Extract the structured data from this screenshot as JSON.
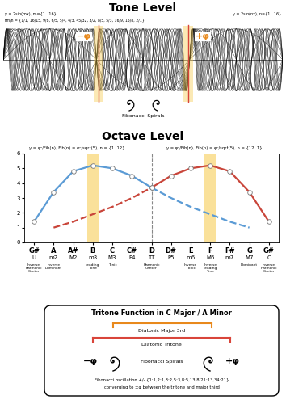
{
  "tone_level": {
    "title": "Tone Level",
    "formula_left": "y = 2sin(mx), m={1...16}",
    "ratios": "fm/n = {1/1, 16/15, 9/8, 6/5, 5/4, 4/3, 45/32, 3/2, 8/5, 5/3, 16/9, 15/8, 2/1}",
    "formula_right": "y = 2sin(nx), n={1...16}",
    "amplitude": 2,
    "m_range": [
      1,
      16
    ],
    "minus_phi": "−φ",
    "plus_phi": "+φ",
    "spiral_label": "Fibonacci Spirals"
  },
  "chart_data": {
    "type": "line",
    "title": "Octave Level",
    "formula_left": "y = φⁿ/Fib(n), Fib(n) = φⁿ/sqrt(5), n = {1..12}",
    "formula_right": "y = φⁿ/Fib(n), Fib(n) = φⁿ/sqrt(5), n = {12..1}",
    "categories": [
      "G#",
      "A",
      "A#",
      "B",
      "C",
      "C#",
      "D",
      "D#",
      "E",
      "F",
      "F#",
      "G",
      "G#"
    ],
    "intervals": [
      "U",
      "m2",
      "M2",
      "m3",
      "M3",
      "P4",
      "TT",
      "P5",
      "m6",
      "M6",
      "m7",
      "M7",
      "O"
    ],
    "functions": [
      "Inverse Harmonic Center",
      "Inverse Dominant",
      null,
      "Leading Tone",
      "Tonic",
      null,
      "Harmonic Center",
      null,
      "Inverse Tonic",
      "Inverse Leading Tone",
      null,
      "Dominant",
      "Inverse Harmonic Center"
    ],
    "highlight_categories": [
      "B",
      "F"
    ],
    "divider_category": "D",
    "ylim": [
      0,
      6
    ],
    "yticks": [
      0,
      1,
      2,
      3,
      4,
      5,
      6
    ],
    "grid": false,
    "series": [
      {
        "color": "#5b9bd5",
        "line_style": "solid",
        "marker": "o",
        "values": [
          1.4,
          3.4,
          4.8,
          5.2,
          5.0,
          4.5,
          3.7,
          null,
          null,
          null,
          null,
          null,
          null
        ]
      },
      {
        "color": "#5b9bd5",
        "line_style": "dashed",
        "marker": "none",
        "values": [
          null,
          null,
          null,
          null,
          null,
          null,
          3.7,
          3.0,
          2.4,
          1.9,
          1.4,
          1.0,
          null
        ]
      },
      {
        "color": "#c9453a",
        "line_style": "dashed",
        "marker": "none",
        "values": [
          null,
          1.0,
          1.4,
          1.9,
          2.4,
          3.0,
          3.7,
          null,
          null,
          null,
          null,
          null,
          null
        ]
      },
      {
        "color": "#c9453a",
        "line_style": "solid",
        "marker": "o",
        "values": [
          null,
          null,
          null,
          null,
          null,
          null,
          3.7,
          4.5,
          5.0,
          5.2,
          4.8,
          3.4,
          1.4
        ]
      }
    ]
  },
  "tritone_box": {
    "title": "Tritone Function in C Major / A Minor",
    "major_third": "Diatonic Major 3rd",
    "tritone": "Diatonic Tritone",
    "minus_phi": "−φ",
    "plus_phi": "+φ",
    "spiral_label": "Fibonacci Spirals",
    "lines": [
      "Fibonacci oscillation +/- {1:1,2:1,3:2,5:3,8:5,13:8,21:13,34:21}",
      "converging to ±φ between the tritone and major third"
    ]
  }
}
